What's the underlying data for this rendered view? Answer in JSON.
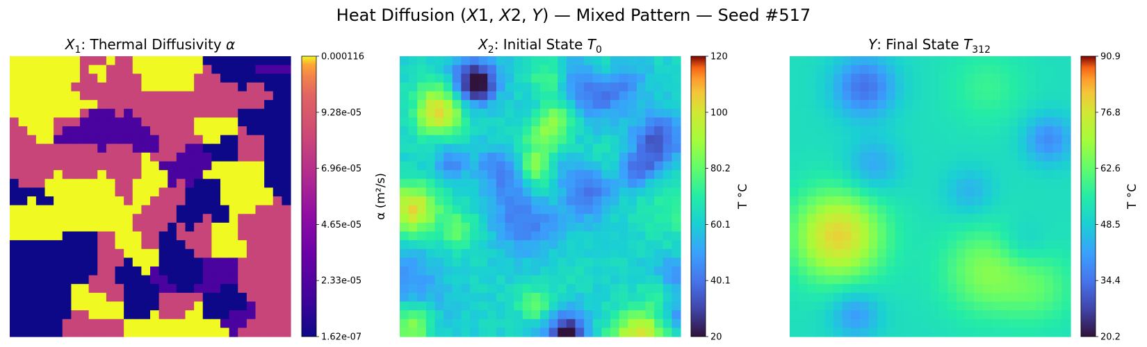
{
  "figure_title": "Heat Diffusion (X1, X2, Y) — Mixed Pattern  — Seed #517",
  "chart_data": [
    {
      "type": "heatmap",
      "title": "X1: Thermal Diffusivity α",
      "colormap": "plasma",
      "grid": [
        32,
        32
      ],
      "vmin": 1.62e-07,
      "vmax": 0.000116,
      "colorbar_label": "α (m²/s)",
      "colorbar_ticks": [
        "1.62e-07",
        "2.33e-05",
        "4.65e-05",
        "6.96e-05",
        "9.28e-05",
        "0.000116"
      ],
      "levels": {
        "dark_blue": 1.62e-07,
        "purple": 2e-05,
        "orange": 8e-05,
        "yellow": 0.000116
      }
    },
    {
      "type": "heatmap",
      "title": "X2: Initial State T0",
      "colormap": "turbo",
      "grid": [
        32,
        32
      ],
      "vmin": 20,
      "vmax": 120,
      "colorbar_label": "T °C",
      "colorbar_ticks": [
        "20",
        "40.1",
        "60.1",
        "80.2",
        "100",
        "120"
      ]
    },
    {
      "type": "heatmap",
      "title": "Y: Final State T312",
      "colormap": "turbo",
      "grid": [
        32,
        32
      ],
      "vmin": 20.2,
      "vmax": 90.9,
      "colorbar_label": "T °C",
      "colorbar_ticks": [
        "20.2",
        "34.4",
        "48.5",
        "62.6",
        "76.8",
        "90.9"
      ]
    }
  ]
}
